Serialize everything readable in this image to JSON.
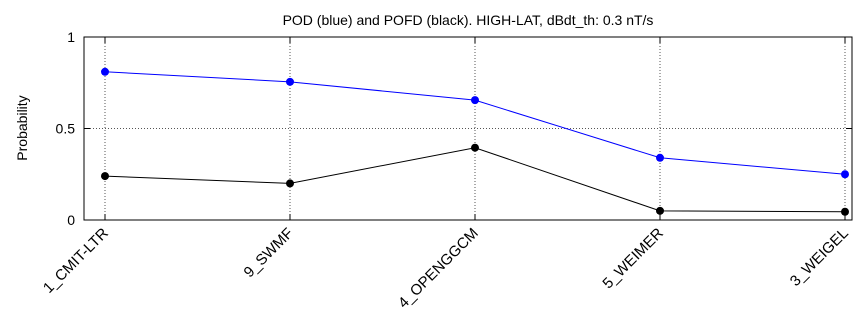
{
  "chart_data": {
    "type": "line",
    "title": "POD (blue) and POFD (black). HIGH-LAT, dBdt_th: 0.3 nT/s",
    "xlabel": "",
    "ylabel": "Probability",
    "categories": [
      "1_CMIT-LTR",
      "9_SWMF",
      "4_OPENGGCM",
      "5_WEIMER",
      "3_WEIGEL"
    ],
    "ylim": [
      0,
      1
    ],
    "yticks": [
      0,
      0.5,
      1
    ],
    "ytick_labels": [
      "0",
      "0.5",
      "1"
    ],
    "grid": true,
    "series": [
      {
        "name": "POD",
        "color": "#0000ff",
        "values": [
          0.81,
          0.755,
          0.655,
          0.34,
          0.25
        ]
      },
      {
        "name": "POFD",
        "color": "#000000",
        "values": [
          0.24,
          0.2,
          0.395,
          0.05,
          0.045
        ]
      }
    ]
  }
}
